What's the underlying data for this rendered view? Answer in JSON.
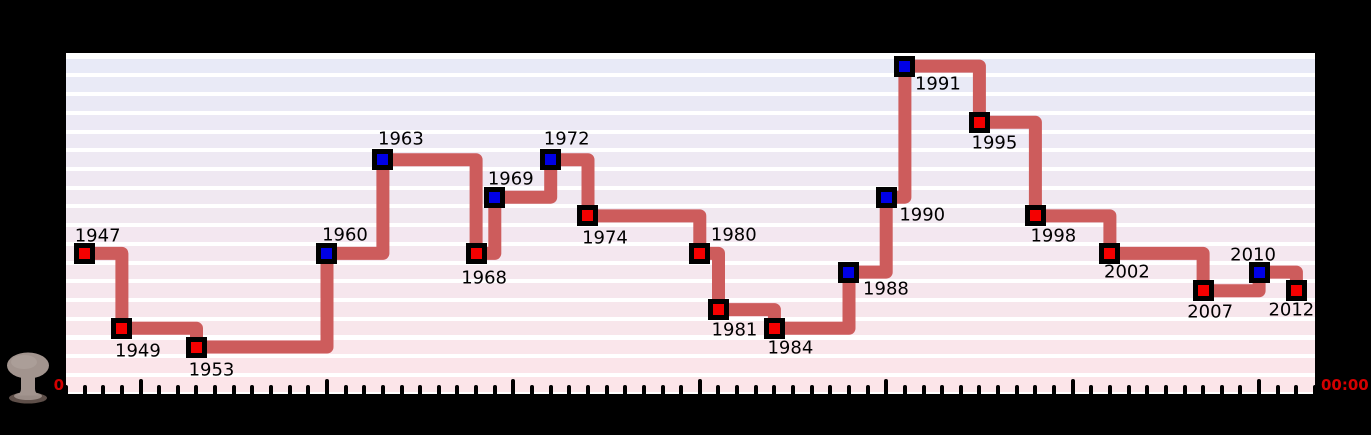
{
  "chart_data": {
    "type": "line",
    "step_style": "post",
    "legend": "none",
    "grid": "horizontal striped bands, one per minute",
    "xlim": [
      1946,
      2013
    ],
    "ylim": [
      -0.5,
      17.8
    ],
    "x_ticks": {
      "minor_every_years": 1,
      "major_every_years": 10
    },
    "x": [
      1947,
      1949,
      1953,
      1960,
      1963,
      1968,
      1969,
      1972,
      1974,
      1980,
      1981,
      1984,
      1988,
      1990,
      1991,
      1995,
      1998,
      2002,
      2007,
      2010,
      2012
    ],
    "series": [
      {
        "name": "minutes-to-midnight",
        "values": [
          7,
          3,
          2,
          7,
          12,
          7,
          10,
          12,
          9,
          7,
          4,
          3,
          6,
          10,
          17,
          14,
          9,
          7,
          5,
          6,
          5
        ]
      }
    ],
    "points": [
      {
        "year": 1947,
        "minutes": 7,
        "marker": "red",
        "label": "1947",
        "label_offset": [
          13,
          -17
        ]
      },
      {
        "year": 1949,
        "minutes": 3,
        "marker": "red",
        "label": "1949",
        "label_offset": [
          16,
          23
        ]
      },
      {
        "year": 1953,
        "minutes": 2,
        "marker": "red",
        "label": "1953",
        "label_offset": [
          15,
          23
        ]
      },
      {
        "year": 1960,
        "minutes": 7,
        "marker": "blue",
        "label": "1960",
        "label_offset": [
          18,
          -18
        ]
      },
      {
        "year": 1963,
        "minutes": 12,
        "marker": "blue",
        "label": "1963",
        "label_offset": [
          18,
          -21
        ]
      },
      {
        "year": 1968,
        "minutes": 7,
        "marker": "red",
        "label": "1968",
        "label_offset": [
          8,
          25
        ]
      },
      {
        "year": 1969,
        "minutes": 10,
        "marker": "blue",
        "label": "1969",
        "label_offset": [
          16,
          -18
        ]
      },
      {
        "year": 1972,
        "minutes": 12,
        "marker": "blue",
        "label": "1972",
        "label_offset": [
          16,
          -21
        ]
      },
      {
        "year": 1974,
        "minutes": 9,
        "marker": "red",
        "label": "1974",
        "label_offset": [
          17,
          22
        ]
      },
      {
        "year": 1980,
        "minutes": 7,
        "marker": "red",
        "label": "1980",
        "label_offset": [
          34,
          -18
        ]
      },
      {
        "year": 1981,
        "minutes": 4,
        "marker": "red",
        "label": "1981",
        "label_offset": [
          16,
          20
        ]
      },
      {
        "year": 1984,
        "minutes": 3,
        "marker": "red",
        "label": "1984",
        "label_offset": [
          16,
          20
        ]
      },
      {
        "year": 1988,
        "minutes": 6,
        "marker": "blue",
        "label": "1988",
        "label_offset": [
          37,
          17
        ]
      },
      {
        "year": 1990,
        "minutes": 10,
        "marker": "blue",
        "label": "1990",
        "label_offset": [
          36,
          18
        ]
      },
      {
        "year": 1991,
        "minutes": 17,
        "marker": "blue",
        "label": "1991",
        "label_offset": [
          33,
          18
        ]
      },
      {
        "year": 1995,
        "minutes": 14,
        "marker": "red",
        "label": "1995",
        "label_offset": [
          15,
          21
        ]
      },
      {
        "year": 1998,
        "minutes": 9,
        "marker": "red",
        "label": "1998",
        "label_offset": [
          18,
          20
        ]
      },
      {
        "year": 2002,
        "minutes": 7,
        "marker": "red",
        "label": "2002",
        "label_offset": [
          17,
          19
        ]
      },
      {
        "year": 2007,
        "minutes": 5,
        "marker": "red",
        "label": "2007",
        "label_offset": [
          7,
          21
        ]
      },
      {
        "year": 2010,
        "minutes": 6,
        "marker": "blue",
        "label": "2010",
        "label_offset": [
          -6,
          -17
        ]
      },
      {
        "year": 2012,
        "minutes": 5,
        "marker": "red",
        "label": "2012",
        "label_offset": [
          -5,
          19
        ]
      }
    ],
    "axis_annotations": {
      "left": "0",
      "right": "00:00"
    },
    "colors": {
      "figure_background": "#000000",
      "plot_background": "#ffffff",
      "band_top": "#e8eaf7",
      "band_bottom": "#fce5e9",
      "line": "#cd5c5c",
      "marker_red": "#f50000",
      "marker_blue": "#0000e6",
      "marker_border": "#000000",
      "tick": "#000000",
      "year_label": "#000000",
      "axis_annotation": "#d40000"
    }
  },
  "icons": {
    "bottom_left": "mushroom-cloud-icon"
  }
}
